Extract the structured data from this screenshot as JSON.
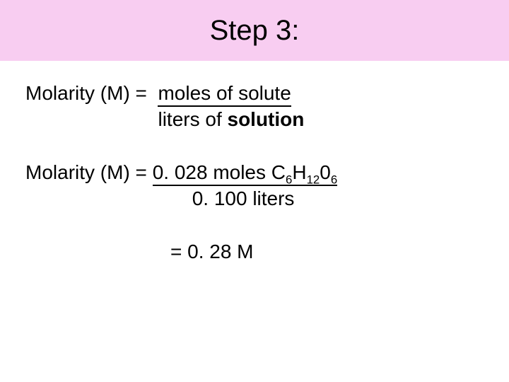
{
  "header": {
    "title": "Step 3:",
    "background_color": "#f8cdf1",
    "title_fontsize": 40
  },
  "formula": {
    "lhs": "Molarity (M) =  ",
    "numerator": "moles of solute",
    "denom_prefix": "liters of ",
    "denom_bold": "solution"
  },
  "calc": {
    "lhs": "Molarity (M) = ",
    "num_part1": "0. 028 moles C",
    "num_sub1": "6",
    "num_part2": "H",
    "num_sub2": "12",
    "num_part3": "0",
    "num_sub3": "6",
    "denominator": "0. 100 liters"
  },
  "result": {
    "text": "= 0. 28 M"
  },
  "style": {
    "body_fontsize": 28,
    "text_color": "#000000",
    "background_color": "#ffffff"
  }
}
